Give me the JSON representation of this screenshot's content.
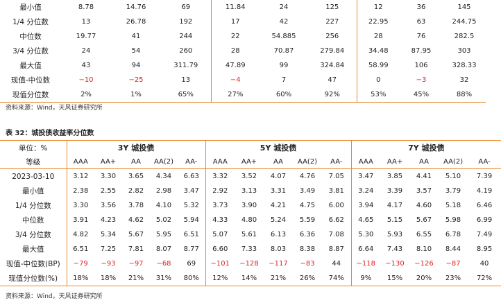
{
  "top_table": {
    "rows": [
      {
        "label": "最小值",
        "cells": [
          "8.78",
          "14.76",
          "69",
          "11.84",
          "24",
          "125",
          "12",
          "36",
          "145"
        ]
      },
      {
        "label": "1/4 分位数",
        "cells": [
          "13",
          "26.78",
          "192",
          "17",
          "42",
          "227",
          "22.95",
          "63",
          "244.75"
        ]
      },
      {
        "label": "中位数",
        "cells": [
          "19.77",
          "41",
          "244",
          "22",
          "54.885",
          "256",
          "28",
          "76",
          "282.5"
        ]
      },
      {
        "label": "3/4 分位数",
        "cells": [
          "24",
          "54",
          "260",
          "28",
          "70.87",
          "279.84",
          "34.48",
          "87.95",
          "303"
        ]
      },
      {
        "label": "最大值",
        "cells": [
          "43",
          "94",
          "311.79",
          "47.89",
          "99",
          "324.84",
          "58.99",
          "106",
          "328.33"
        ]
      },
      {
        "label": "现值-中位数",
        "cells": [
          "-10",
          "-25",
          "13",
          "-4",
          "7",
          "47",
          "0",
          "-3",
          "32"
        ]
      },
      {
        "label": "现值分位数",
        "cells": [
          "2%",
          "1%",
          "65%",
          "27%",
          "60%",
          "92%",
          "53%",
          "45%",
          "88%"
        ]
      }
    ]
  },
  "source_1": "资料来源：Wind，天风证券研究所",
  "table_title": "表 32：城投债收益率分位数",
  "bottom_table": {
    "unit_label": "单位：%",
    "grade_label": "等级",
    "groups": [
      "3Y 城投债",
      "5Y 城投债",
      "7Y 城投债"
    ],
    "grades": [
      "AAA",
      "AA+",
      "AA",
      "AA(2)",
      "AA-"
    ],
    "rows": [
      {
        "label": "2023-03-10",
        "cells": [
          "3.12",
          "3.30",
          "3.65",
          "4.34",
          "6.63",
          "3.32",
          "3.52",
          "4.07",
          "4.76",
          "7.05",
          "3.47",
          "3.85",
          "4.41",
          "5.10",
          "7.39"
        ]
      },
      {
        "label": "最小值",
        "cells": [
          "2.38",
          "2.55",
          "2.82",
          "2.98",
          "3.47",
          "2.92",
          "3.13",
          "3.31",
          "3.49",
          "3.81",
          "3.24",
          "3.39",
          "3.57",
          "3.79",
          "4.19"
        ]
      },
      {
        "label": "1/4 分位数",
        "cells": [
          "3.30",
          "3.56",
          "3.78",
          "4.10",
          "5.32",
          "3.73",
          "3.90",
          "4.21",
          "4.75",
          "6.00",
          "3.94",
          "4.17",
          "4.60",
          "5.18",
          "6.46"
        ]
      },
      {
        "label": "中位数",
        "cells": [
          "3.91",
          "4.23",
          "4.62",
          "5.02",
          "5.94",
          "4.33",
          "4.80",
          "5.24",
          "5.59",
          "6.62",
          "4.65",
          "5.15",
          "5.67",
          "5.98",
          "6.99"
        ]
      },
      {
        "label": "3/4 分位数",
        "cells": [
          "4.82",
          "5.34",
          "5.67",
          "5.95",
          "6.51",
          "5.07",
          "5.61",
          "6.13",
          "6.36",
          "7.08",
          "5.30",
          "5.93",
          "6.55",
          "6.78",
          "7.49"
        ]
      },
      {
        "label": "最大值",
        "cells": [
          "6.51",
          "7.25",
          "7.81",
          "8.07",
          "8.77",
          "6.60",
          "7.33",
          "8.03",
          "8.38",
          "8.87",
          "6.64",
          "7.43",
          "8.10",
          "8.44",
          "8.95"
        ]
      },
      {
        "label": "现值-中位数(BP)",
        "cells": [
          "-79",
          "-93",
          "-97",
          "-68",
          "69",
          "-101",
          "-128",
          "-117",
          "-83",
          "44",
          "-118",
          "-130",
          "-126",
          "-87",
          "40"
        ]
      },
      {
        "label": "现值分位数(%)",
        "cells": [
          "18%",
          "18%",
          "21%",
          "31%",
          "80%",
          "12%",
          "14%",
          "21%",
          "26%",
          "74%",
          "9%",
          "15%",
          "20%",
          "23%",
          "72%"
        ]
      }
    ]
  },
  "source_2": "资料来源：Wind，天风证券研究所",
  "colors": {
    "accent": "#e8862a",
    "negative": "#e02020"
  }
}
